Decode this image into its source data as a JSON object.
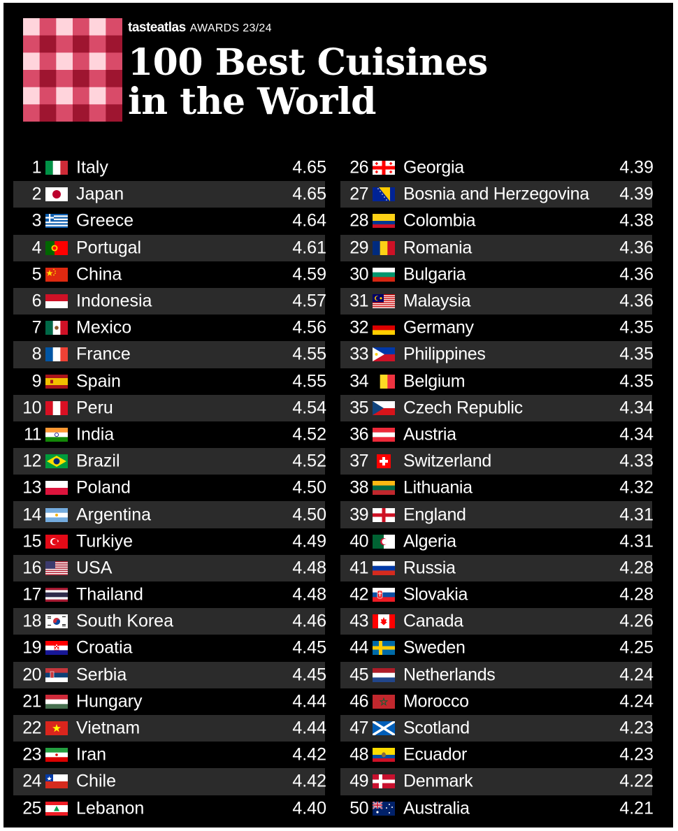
{
  "header": {
    "brand": "tasteatlas",
    "awards": "AWARDS 23/24",
    "title_line1": "100 Best Cuisines",
    "title_line2": "in the World"
  },
  "colors": {
    "background": "#000000",
    "row_alt": "#2b2b2b",
    "text": "#ffffff",
    "logo_dark": "#b71c3a",
    "logo_light": "#f3b6c2"
  },
  "left_column": [
    {
      "rank": "1",
      "country": "Italy",
      "score": "4.65",
      "flag": "italy-flag-icon"
    },
    {
      "rank": "2",
      "country": "Japan",
      "score": "4.65",
      "flag": "japan-flag-icon"
    },
    {
      "rank": "3",
      "country": "Greece",
      "score": "4.64",
      "flag": "greece-flag-icon"
    },
    {
      "rank": "4",
      "country": "Portugal",
      "score": "4.61",
      "flag": "portugal-flag-icon"
    },
    {
      "rank": "5",
      "country": "China",
      "score": "4.59",
      "flag": "china-flag-icon"
    },
    {
      "rank": "6",
      "country": "Indonesia",
      "score": "4.57",
      "flag": "indonesia-flag-icon"
    },
    {
      "rank": "7",
      "country": "Mexico",
      "score": "4.56",
      "flag": "mexico-flag-icon"
    },
    {
      "rank": "8",
      "country": "France",
      "score": "4.55",
      "flag": "france-flag-icon"
    },
    {
      "rank": "9",
      "country": "Spain",
      "score": "4.55",
      "flag": "spain-flag-icon"
    },
    {
      "rank": "10",
      "country": "Peru",
      "score": "4.54",
      "flag": "peru-flag-icon"
    },
    {
      "rank": "11",
      "country": "India",
      "score": "4.52",
      "flag": "india-flag-icon"
    },
    {
      "rank": "12",
      "country": "Brazil",
      "score": "4.52",
      "flag": "brazil-flag-icon"
    },
    {
      "rank": "13",
      "country": "Poland",
      "score": "4.50",
      "flag": "poland-flag-icon"
    },
    {
      "rank": "14",
      "country": "Argentina",
      "score": "4.50",
      "flag": "argentina-flag-icon"
    },
    {
      "rank": "15",
      "country": "Turkiye",
      "score": "4.49",
      "flag": "turkiye-flag-icon"
    },
    {
      "rank": "16",
      "country": "USA",
      "score": "4.48",
      "flag": "usa-flag-icon"
    },
    {
      "rank": "17",
      "country": "Thailand",
      "score": "4.48",
      "flag": "thailand-flag-icon"
    },
    {
      "rank": "18",
      "country": "South Korea",
      "score": "4.46",
      "flag": "south-korea-flag-icon"
    },
    {
      "rank": "19",
      "country": "Croatia",
      "score": "4.45",
      "flag": "croatia-flag-icon"
    },
    {
      "rank": "20",
      "country": "Serbia",
      "score": "4.45",
      "flag": "serbia-flag-icon"
    },
    {
      "rank": "21",
      "country": "Hungary",
      "score": "4.44",
      "flag": "hungary-flag-icon"
    },
    {
      "rank": "22",
      "country": "Vietnam",
      "score": "4.44",
      "flag": "vietnam-flag-icon"
    },
    {
      "rank": "23",
      "country": "Iran",
      "score": "4.42",
      "flag": "iran-flag-icon"
    },
    {
      "rank": "24",
      "country": "Chile",
      "score": "4.42",
      "flag": "chile-flag-icon"
    },
    {
      "rank": "25",
      "country": "Lebanon",
      "score": "4.40",
      "flag": "lebanon-flag-icon"
    }
  ],
  "right_column": [
    {
      "rank": "26",
      "country": "Georgia",
      "score": "4.39",
      "flag": "georgia-flag-icon"
    },
    {
      "rank": "27",
      "country": "Bosnia and Herzegovina",
      "score": "4.39",
      "flag": "bosnia-flag-icon"
    },
    {
      "rank": "28",
      "country": "Colombia",
      "score": "4.38",
      "flag": "colombia-flag-icon"
    },
    {
      "rank": "29",
      "country": "Romania",
      "score": "4.36",
      "flag": "romania-flag-icon"
    },
    {
      "rank": "30",
      "country": "Bulgaria",
      "score": "4.36",
      "flag": "bulgaria-flag-icon"
    },
    {
      "rank": "31",
      "country": "Malaysia",
      "score": "4.36",
      "flag": "malaysia-flag-icon"
    },
    {
      "rank": "32",
      "country": "Germany",
      "score": "4.35",
      "flag": "germany-flag-icon"
    },
    {
      "rank": "33",
      "country": "Philippines",
      "score": "4.35",
      "flag": "philippines-flag-icon"
    },
    {
      "rank": "34",
      "country": "Belgium",
      "score": "4.35",
      "flag": "belgium-flag-icon"
    },
    {
      "rank": "35",
      "country": "Czech Republic",
      "score": "4.34",
      "flag": "czech-flag-icon"
    },
    {
      "rank": "36",
      "country": "Austria",
      "score": "4.34",
      "flag": "austria-flag-icon"
    },
    {
      "rank": "37",
      "country": "Switzerland",
      "score": "4.33",
      "flag": "switzerland-flag-icon"
    },
    {
      "rank": "38",
      "country": "Lithuania",
      "score": "4.32",
      "flag": "lithuania-flag-icon"
    },
    {
      "rank": "39",
      "country": "England",
      "score": "4.31",
      "flag": "england-flag-icon"
    },
    {
      "rank": "40",
      "country": "Algeria",
      "score": "4.31",
      "flag": "algeria-flag-icon"
    },
    {
      "rank": "41",
      "country": "Russia",
      "score": "4.28",
      "flag": "russia-flag-icon"
    },
    {
      "rank": "42",
      "country": "Slovakia",
      "score": "4.28",
      "flag": "slovakia-flag-icon"
    },
    {
      "rank": "43",
      "country": "Canada",
      "score": "4.26",
      "flag": "canada-flag-icon"
    },
    {
      "rank": "44",
      "country": "Sweden",
      "score": "4.25",
      "flag": "sweden-flag-icon"
    },
    {
      "rank": "45",
      "country": "Netherlands",
      "score": "4.24",
      "flag": "netherlands-flag-icon"
    },
    {
      "rank": "46",
      "country": "Morocco",
      "score": "4.24",
      "flag": "morocco-flag-icon"
    },
    {
      "rank": "47",
      "country": "Scotland",
      "score": "4.23",
      "flag": "scotland-flag-icon"
    },
    {
      "rank": "48",
      "country": "Ecuador",
      "score": "4.23",
      "flag": "ecuador-flag-icon"
    },
    {
      "rank": "49",
      "country": "Denmark",
      "score": "4.22",
      "flag": "denmark-flag-icon"
    },
    {
      "rank": "50",
      "country": "Australia",
      "score": "4.21",
      "flag": "australia-flag-icon"
    }
  ]
}
